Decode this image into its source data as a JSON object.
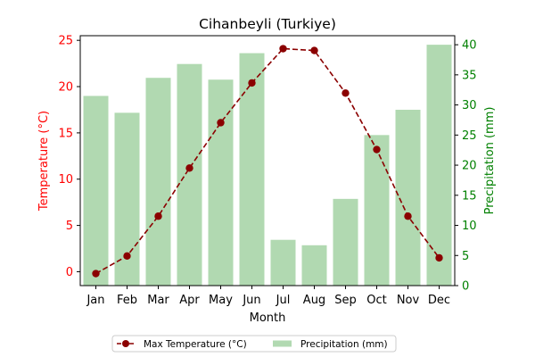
{
  "chart_data": {
    "type": "bar+line",
    "title": "Cihanbeyli (Turkiye)",
    "xlabel": "Month",
    "categories": [
      "Jan",
      "Feb",
      "Mar",
      "Apr",
      "May",
      "Jun",
      "Jul",
      "Aug",
      "Sep",
      "Oct",
      "Nov",
      "Dec"
    ],
    "left_axis": {
      "label": "Temperature (°C)",
      "color": "#ff0000",
      "ylim": [
        -1.5,
        25.5
      ],
      "ticks": [
        0,
        5,
        10,
        15,
        20,
        25
      ]
    },
    "right_axis": {
      "label": "Precipitation (mm)",
      "color": "#008000",
      "ylim": [
        0,
        41.5
      ],
      "ticks": [
        0,
        5,
        10,
        15,
        20,
        25,
        30,
        35,
        40
      ]
    },
    "series": [
      {
        "name": "Max Temperature (°C)",
        "kind": "line",
        "axis": "left",
        "color": "#8b0000",
        "values": [
          -0.2,
          1.7,
          6.0,
          11.2,
          16.1,
          20.4,
          24.1,
          23.9,
          19.3,
          13.2,
          6.0,
          1.5
        ]
      },
      {
        "name": "Precipitation (mm)",
        "kind": "bar",
        "axis": "right",
        "color": "#b1d9b1",
        "values": [
          31.5,
          28.7,
          34.5,
          36.8,
          34.2,
          38.6,
          7.6,
          6.7,
          14.4,
          25.0,
          29.2,
          40.0
        ]
      }
    ],
    "legend": {
      "placement": "bottom-center",
      "ncol": 2
    },
    "grid": false
  }
}
